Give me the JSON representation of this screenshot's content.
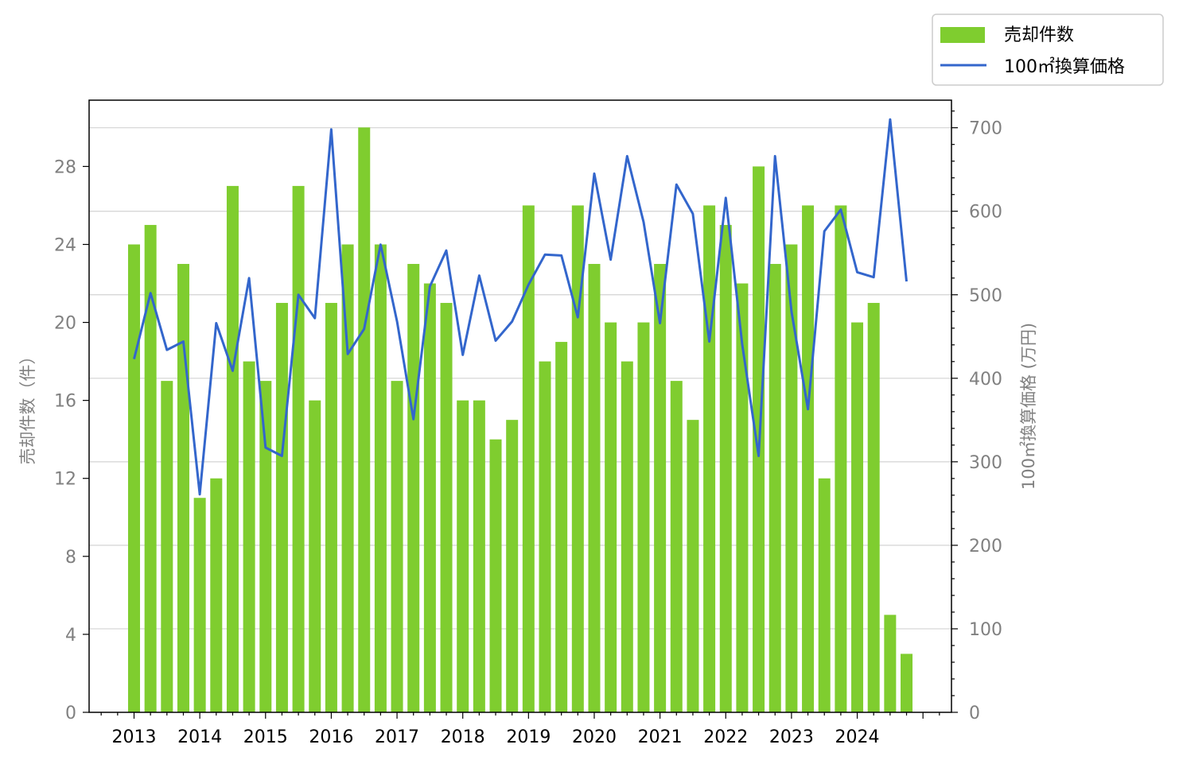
{
  "chart_data": {
    "type": "bar+line",
    "title": "",
    "x_tick_labels": [
      "2013",
      "2014",
      "2015",
      "2016",
      "2017",
      "2018",
      "2019",
      "2020",
      "2021",
      "2022",
      "2023",
      "2024"
    ],
    "y_left": {
      "label": "売却件数（件）",
      "ylim": [
        0,
        31.4
      ],
      "ticks": [
        0,
        4,
        8,
        12,
        16,
        20,
        24,
        28
      ]
    },
    "y_right": {
      "label": "100㎡換算価格 (万円)",
      "ylim": [
        0,
        733
      ],
      "ticks": [
        0,
        100,
        200,
        300,
        400,
        500,
        600,
        700
      ]
    },
    "grid": "horizontal, right axis",
    "legend": {
      "placement": "top-right, outside plot"
    },
    "series": [
      {
        "name": "売却件数",
        "kind": "bar",
        "axis": "left",
        "color": "#7fcd2f",
        "values": [
          24,
          25,
          17,
          23,
          11,
          12,
          27,
          18,
          17,
          21,
          27,
          16,
          21,
          24,
          30,
          24,
          17,
          23,
          22,
          21,
          16,
          16,
          14,
          15,
          26,
          18,
          19,
          26,
          23,
          20,
          18,
          20,
          23,
          17,
          15,
          26,
          25,
          22,
          28,
          23,
          24,
          26,
          12,
          26,
          20,
          21,
          5,
          3
        ]
      },
      {
        "name": "100㎡換算価格",
        "kind": "line",
        "axis": "right",
        "color": "#3366cc",
        "values": [
          423,
          502,
          434,
          444,
          261,
          466,
          409,
          520,
          317,
          307,
          500,
          472,
          698,
          429,
          459,
          560,
          468,
          351,
          510,
          553,
          428,
          523,
          445,
          468,
          512,
          548,
          547,
          473,
          645,
          542,
          666,
          587,
          466,
          632,
          597,
          444,
          616,
          441,
          307,
          666,
          480,
          363,
          576,
          602,
          527,
          521,
          710,
          516
        ]
      }
    ]
  }
}
